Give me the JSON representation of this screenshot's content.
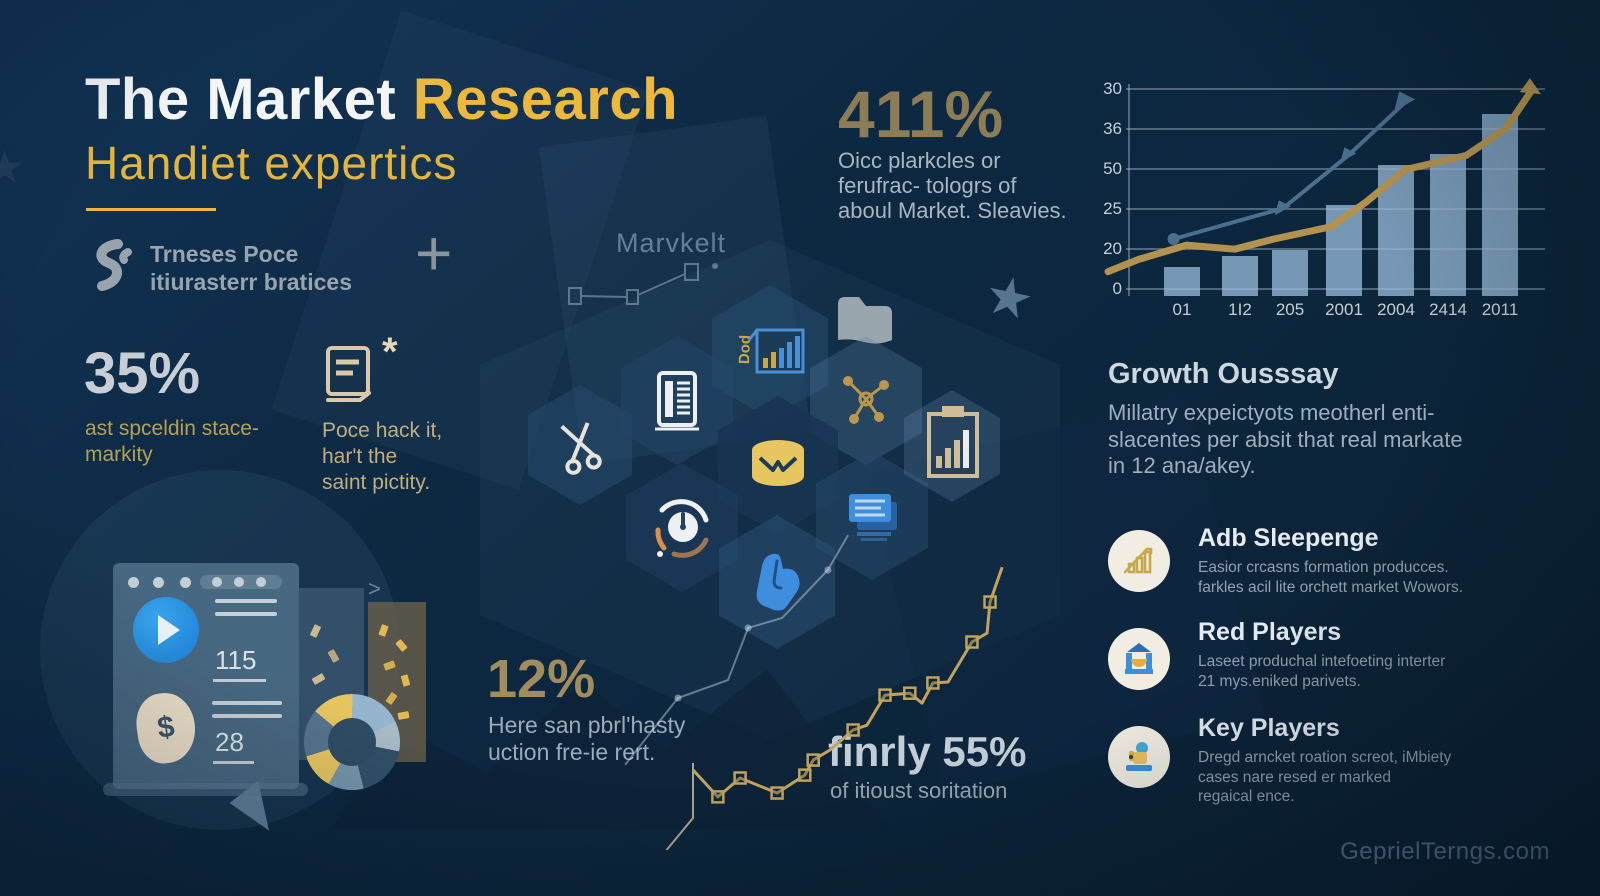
{
  "page": {
    "watermark": "GeprielTerngs.com"
  },
  "header": {
    "title_white": "The Market",
    "title_gold": "Research",
    "subtitle": "Handiet expertics"
  },
  "brand": {
    "line1": "Trneses Poce",
    "line2": "itiurasterr bratices",
    "plus": "+",
    "ghost_label": "Marvkelt"
  },
  "stat_411": {
    "value": "411%",
    "lines": [
      "Oicc plarkcles or",
      "ferufrac- tologrs of",
      "aboul Market. Sleavies."
    ]
  },
  "stat_35": {
    "value": "35%",
    "lines": [
      "ast spceldin stace-",
      "markity"
    ]
  },
  "doc_note": {
    "asterisk": "*",
    "lines": [
      "Poce hack it,",
      "har't the",
      "saint pictity."
    ]
  },
  "stat_12": {
    "value": "12%",
    "lines": [
      "Here san pbrl'hasty",
      "uction fre-ie rert."
    ]
  },
  "stat_55": {
    "value": "finrly 55%",
    "caption": "of itioust soritation"
  },
  "growth": {
    "heading": "Growth Ousssay",
    "lines": [
      "Millatry expeictyots meotherl enti-",
      "slacentes per absit that real markate",
      "in 12 ana/akey."
    ]
  },
  "players": [
    {
      "title": "Adb Sleepenge",
      "icon": "growth-bars-icon",
      "lines": [
        "Easior crcasns formation producces.",
        "farkles acil lite orchett market Wowors."
      ]
    },
    {
      "title": "Red Players",
      "icon": "building-icon",
      "lines": [
        "Laseet produchal intefoeting interter",
        "21 mys.eniked parivets."
      ]
    },
    {
      "title": "Key Players",
      "icon": "person-icon",
      "lines": [
        "Dregd arncket roation screot, iMbiety",
        "cases nare resed er marked",
        "regaical ence."
      ]
    }
  ],
  "dashboard": {
    "metric1": "115",
    "metric2": "28",
    "currency": "$"
  },
  "hex_label": "Dod",
  "decor": {
    "star": "★",
    "chevron": ">"
  },
  "colors": {
    "accent_gold": "#e8b93d",
    "muted_gold": "#8d7d57",
    "silver": "#c9d0d8",
    "bar_blue": "#96b9d6",
    "line_gold": "#b3924f",
    "line_blue": "#49708f",
    "cream": "#f1ece0",
    "icon_blue": "#3f8ede",
    "background": "#0d2942"
  },
  "chart_data": [
    {
      "id": "growth-chart",
      "type": "bar+line",
      "title": "",
      "categories": [
        "01",
        "1I2",
        "205",
        "2001",
        "2004",
        "2414",
        "2011"
      ],
      "y_ticks_top_to_bottom": [
        "30",
        "36",
        "50",
        "25",
        "20",
        "0"
      ],
      "grid": true,
      "series": [
        {
          "name": "bars",
          "type": "bar",
          "values_norm": [
            0.16,
            0.22,
            0.25,
            0.5,
            0.72,
            0.78,
            1.0
          ]
        },
        {
          "name": "gold-line",
          "type": "line",
          "points": [
            [
              0.0,
              0.09
            ],
            [
              0.07,
              0.15
            ],
            [
              0.18,
              0.22
            ],
            [
              0.29,
              0.2
            ],
            [
              0.38,
              0.25
            ],
            [
              0.51,
              0.31
            ],
            [
              0.59,
              0.43
            ],
            [
              0.68,
              0.59
            ],
            [
              0.76,
              0.63
            ],
            [
              0.82,
              0.66
            ],
            [
              0.91,
              0.79
            ],
            [
              0.97,
              0.98
            ]
          ]
        },
        {
          "name": "blue-line",
          "type": "line",
          "points": [
            [
              0.15,
              0.25
            ],
            [
              0.4,
              0.4
            ],
            [
              0.55,
              0.66
            ],
            [
              0.68,
              0.92
            ]
          ]
        }
      ]
    },
    {
      "id": "trend-sparkline",
      "type": "line",
      "points": [
        [
          0.174,
          0.25
        ],
        [
          0.233,
          0.166
        ],
        [
          0.286,
          0.225
        ],
        [
          0.374,
          0.178
        ],
        [
          0.44,
          0.234
        ],
        [
          0.46,
          0.281
        ],
        [
          0.5,
          0.3125
        ],
        [
          0.555,
          0.375
        ],
        [
          0.588,
          0.39
        ],
        [
          0.631,
          0.484
        ],
        [
          0.69,
          0.49
        ],
        [
          0.719,
          0.459
        ],
        [
          0.745,
          0.522
        ],
        [
          0.781,
          0.525
        ],
        [
          0.838,
          0.65
        ],
        [
          0.874,
          0.678
        ],
        [
          0.881,
          0.775
        ],
        [
          0.91,
          0.884
        ]
      ],
      "marker_indices": [
        1,
        2,
        3,
        4,
        5,
        7,
        9,
        10,
        12,
        14,
        16
      ],
      "secondary_points": [
        [
          0.012,
          0.266
        ],
        [
          0.138,
          0.475
        ],
        [
          0.257,
          0.531
        ],
        [
          0.305,
          0.694
        ],
        [
          0.386,
          0.725
        ],
        [
          0.495,
          0.875
        ],
        [
          0.543,
          0.984
        ]
      ]
    },
    {
      "id": "donut",
      "type": "donut",
      "segments": [
        {
          "color": "#e6c45f",
          "pct": 14
        },
        {
          "color": "#93b6ce",
          "pct": 18
        },
        {
          "color": "#a9bbc6",
          "pct": 10
        },
        {
          "color": "#31506a",
          "pct": 18
        },
        {
          "color": "#7795ab",
          "pct": 12
        },
        {
          "color": "#e6c45f",
          "pct": 12
        },
        {
          "color": "#54748d",
          "pct": 16
        }
      ]
    }
  ]
}
